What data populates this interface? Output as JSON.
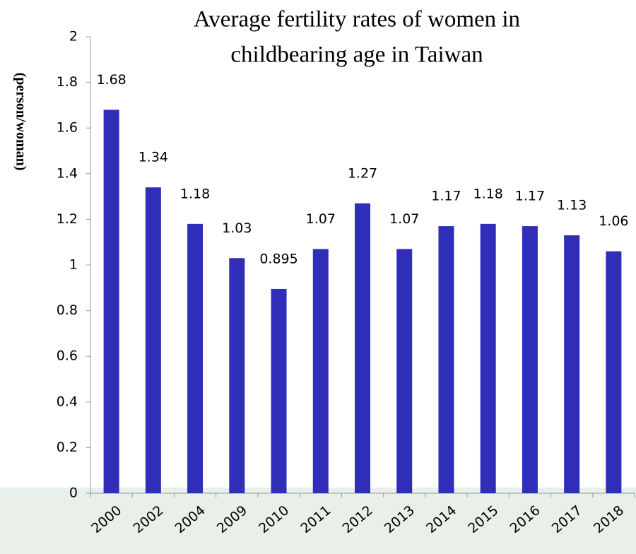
{
  "chart_data": {
    "type": "bar",
    "title": [
      "Average fertility rates of women in",
      "childbearing age  in Taiwan"
    ],
    "y_label": "(person/woman)",
    "categories": [
      "2000",
      "2002",
      "2004",
      "2009",
      "2010",
      "2011",
      "2012",
      "2013",
      "2014",
      "2015",
      "2016",
      "2017",
      "2018"
    ],
    "values": [
      1.68,
      1.34,
      1.18,
      1.03,
      0.895,
      1.07,
      1.27,
      1.07,
      1.17,
      1.18,
      1.17,
      1.13,
      1.06
    ],
    "color": "#2e2eb8",
    "ylim": [
      0,
      2
    ],
    "yticks": [
      0,
      0.2,
      0.4,
      0.6,
      0.8,
      1,
      1.2,
      1.4,
      1.6,
      1.8,
      2
    ],
    "grid": false
  }
}
